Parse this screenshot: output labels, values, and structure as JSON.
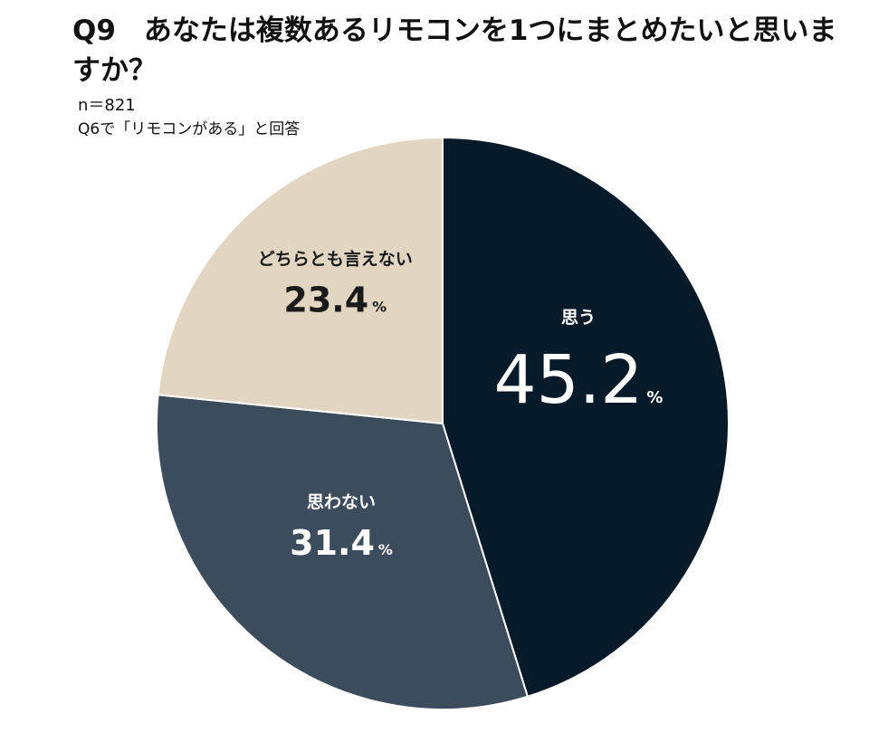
{
  "header": {
    "title": "Q9　あなたは複数あるリモコンを1つにまとめたいと思いますか？",
    "sample_size": "n＝821",
    "condition": "Q6で「リモコンがある」と回答"
  },
  "chart_data": {
    "type": "pie",
    "title": "Q9　あなたは複数あるリモコンを1つにまとめたいと思いますか？",
    "start": "12 o'clock",
    "direction": "clockwise",
    "percent_unit": "%",
    "categories": [
      "思う",
      "思わない",
      "どちらとも言えない"
    ],
    "values": [
      45.2,
      31.4,
      23.4
    ],
    "colors": [
      "#061a2a",
      "#3d4c5d",
      "#e2d5c1"
    ],
    "label_colors": [
      "#ffffff",
      "#ffffff",
      "#1a1a1a"
    ],
    "legend": "none"
  }
}
